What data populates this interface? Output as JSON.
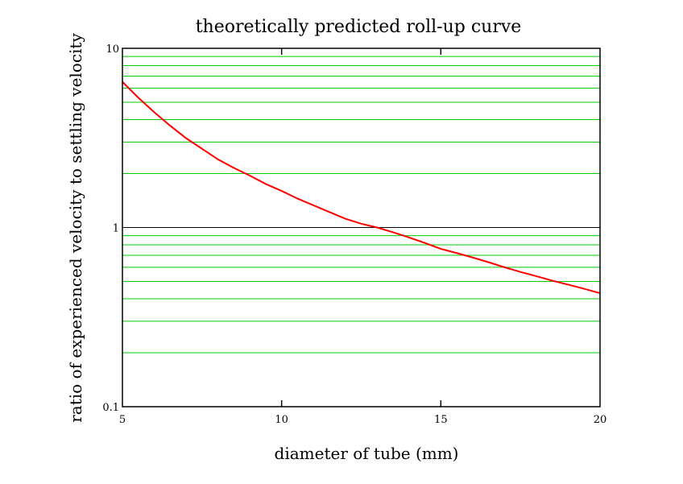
{
  "chart_data": {
    "type": "line",
    "title": "theoretically predicted roll-up curve",
    "xlabel": "diameter of tube (mm)",
    "ylabel": "ratio of experienced velocity to settling velocity",
    "xlim": [
      5,
      20
    ],
    "ylim": [
      0.1,
      10
    ],
    "yscale": "log",
    "x_ticks": [
      5,
      10,
      15,
      20
    ],
    "x_tick_labels": [
      "5",
      "10",
      "15",
      "20"
    ],
    "y_ticks": [
      0.1,
      1,
      10
    ],
    "y_tick_labels": [
      "0.1",
      "1",
      "10"
    ],
    "grid": "horizontal minor lines on log scale",
    "grid_color": "#00cc00",
    "line_color": "#ff0000",
    "series": [
      {
        "x": [
          5,
          5.5,
          6,
          6.5,
          7,
          7.5,
          8,
          8.5,
          9,
          9.5,
          10,
          10.5,
          11,
          11.5,
          12,
          12.5,
          13,
          13.5,
          14,
          14.5,
          15,
          15.5,
          16,
          16.5,
          17,
          17.5,
          18,
          18.5,
          19,
          19.5,
          20
        ],
        "y": [
          6.5,
          5.3,
          4.4,
          3.7,
          3.15,
          2.75,
          2.4,
          2.15,
          1.95,
          1.75,
          1.6,
          1.45,
          1.33,
          1.22,
          1.12,
          1.05,
          1.0,
          0.94,
          0.88,
          0.82,
          0.76,
          0.72,
          0.68,
          0.64,
          0.6,
          0.565,
          0.535,
          0.505,
          0.48,
          0.455,
          0.43
        ]
      }
    ]
  }
}
